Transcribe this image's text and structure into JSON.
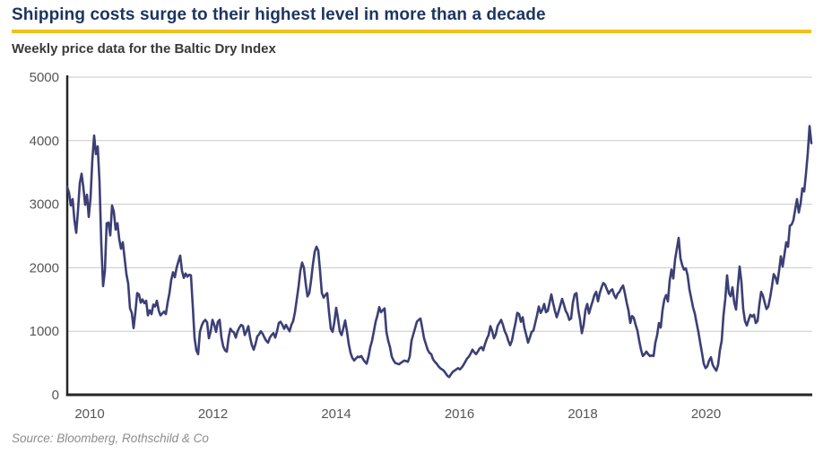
{
  "header": {
    "title": "Shipping costs surge to their highest level in more than a decade",
    "subtitle": "Weekly price data for the Baltic Dry Index"
  },
  "source": {
    "label": "Source: Bloomberg, Rothschild & Co"
  },
  "colors": {
    "title_navy": "#1c355f",
    "accent_gold": "#f2c01a",
    "line_indigo": "#3c3f75",
    "gridline_gray": "#c9c9c9",
    "axis_dark": "#262626",
    "tick_label_gray": "#565656",
    "source_gray": "#8c8c8c"
  },
  "chart_data": {
    "type": "line",
    "title": "Weekly price data for the Baltic Dry Index",
    "series_name": "Baltic Dry Index",
    "legend": "none",
    "grid": "horizontal-only",
    "xlabel": "",
    "ylabel": "",
    "ylim": [
      0,
      5000
    ],
    "yticks": [
      0,
      1000,
      2000,
      3000,
      4000,
      5000
    ],
    "xticks": [
      2010,
      2012,
      2014,
      2016,
      2018,
      2020
    ],
    "x_start_year": 2009.6364,
    "x_step_years": 0.029091,
    "x_end_year": 2021.709,
    "values": [
      3270,
      3180,
      2980,
      3080,
      2750,
      2550,
      2900,
      3330,
      3480,
      3260,
      2990,
      3150,
      2800,
      3100,
      3700,
      4080,
      3790,
      3910,
      3350,
      2370,
      1710,
      1950,
      2700,
      2710,
      2510,
      2980,
      2880,
      2600,
      2700,
      2450,
      2300,
      2400,
      2150,
      1900,
      1750,
      1360,
      1290,
      1050,
      1300,
      1600,
      1580,
      1450,
      1500,
      1440,
      1480,
      1250,
      1330,
      1270,
      1420,
      1390,
      1480,
      1330,
      1250,
      1280,
      1310,
      1270,
      1450,
      1600,
      1810,
      1930,
      1850,
      2000,
      2100,
      2190,
      1950,
      1840,
      1910,
      1860,
      1890,
      1880,
      1400,
      900,
      700,
      640,
      990,
      1090,
      1150,
      1180,
      1140,
      890,
      1000,
      1180,
      1100,
      990,
      1150,
      1180,
      900,
      760,
      700,
      680,
      900,
      1040,
      1000,
      980,
      900,
      1000,
      1060,
      1100,
      1080,
      940,
      1000,
      1080,
      900,
      780,
      710,
      800,
      920,
      950,
      1000,
      960,
      900,
      850,
      820,
      900,
      940,
      970,
      900,
      1000,
      1130,
      1150,
      1100,
      1040,
      1100,
      1050,
      1000,
      1100,
      1160,
      1300,
      1500,
      1700,
      1950,
      2080,
      2000,
      1750,
      1550,
      1600,
      1800,
      2050,
      2250,
      2330,
      2270,
      1950,
      1600,
      1530,
      1570,
      1600,
      1300,
      1040,
      990,
      1150,
      1370,
      1200,
      1000,
      940,
      1050,
      1170,
      1000,
      800,
      660,
      580,
      540,
      570,
      600,
      590,
      610,
      560,
      520,
      490,
      600,
      750,
      850,
      1000,
      1150,
      1250,
      1380,
      1300,
      1330,
      1360,
      990,
      850,
      750,
      600,
      540,
      500,
      490,
      480,
      500,
      520,
      540,
      530,
      520,
      600,
      850,
      950,
      1050,
      1150,
      1180,
      1200,
      1050,
      890,
      800,
      710,
      660,
      640,
      560,
      520,
      490,
      450,
      420,
      400,
      380,
      340,
      300,
      280,
      320,
      360,
      380,
      400,
      420,
      400,
      430,
      470,
      520,
      570,
      600,
      650,
      710,
      670,
      640,
      680,
      730,
      750,
      700,
      800,
      880,
      940,
      1080,
      1000,
      890,
      950,
      1080,
      1130,
      1180,
      1100,
      1000,
      940,
      850,
      780,
      850,
      1000,
      1130,
      1290,
      1270,
      1150,
      1220,
      1050,
      940,
      820,
      900,
      990,
      1010,
      1130,
      1250,
      1390,
      1290,
      1340,
      1430,
      1300,
      1320,
      1450,
      1580,
      1440,
      1320,
      1220,
      1310,
      1410,
      1510,
      1420,
      1320,
      1270,
      1180,
      1200,
      1450,
      1580,
      1600,
      1340,
      1180,
      970,
      1100,
      1330,
      1430,
      1280,
      1380,
      1470,
      1570,
      1620,
      1470,
      1600,
      1690,
      1760,
      1730,
      1660,
      1590,
      1640,
      1660,
      1570,
      1520,
      1590,
      1620,
      1680,
      1720,
      1600,
      1450,
      1330,
      1130,
      1240,
      1210,
      1100,
      1010,
      850,
      710,
      610,
      640,
      680,
      640,
      610,
      620,
      610,
      820,
      940,
      1130,
      1060,
      1330,
      1500,
      1570,
      1470,
      1800,
      1970,
      1830,
      2130,
      2300,
      2470,
      2150,
      2040,
      1970,
      1990,
      1880,
      1660,
      1520,
      1380,
      1280,
      1130,
      990,
      820,
      660,
      490,
      420,
      450,
      540,
      590,
      470,
      420,
      380,
      470,
      700,
      850,
      1250,
      1510,
      1880,
      1600,
      1550,
      1690,
      1450,
      1340,
      1700,
      2020,
      1780,
      1350,
      1160,
      1090,
      1180,
      1260,
      1230,
      1260,
      1130,
      1160,
      1420,
      1620,
      1560,
      1450,
      1350,
      1390,
      1530,
      1700,
      1900,
      1850,
      1750,
      1950,
      2180,
      2020,
      2210,
      2400,
      2330,
      2660,
      2680,
      2750,
      2920,
      3080,
      2870,
      3010,
      3250,
      3200,
      3480,
      3800,
      4230,
      3960
    ]
  }
}
